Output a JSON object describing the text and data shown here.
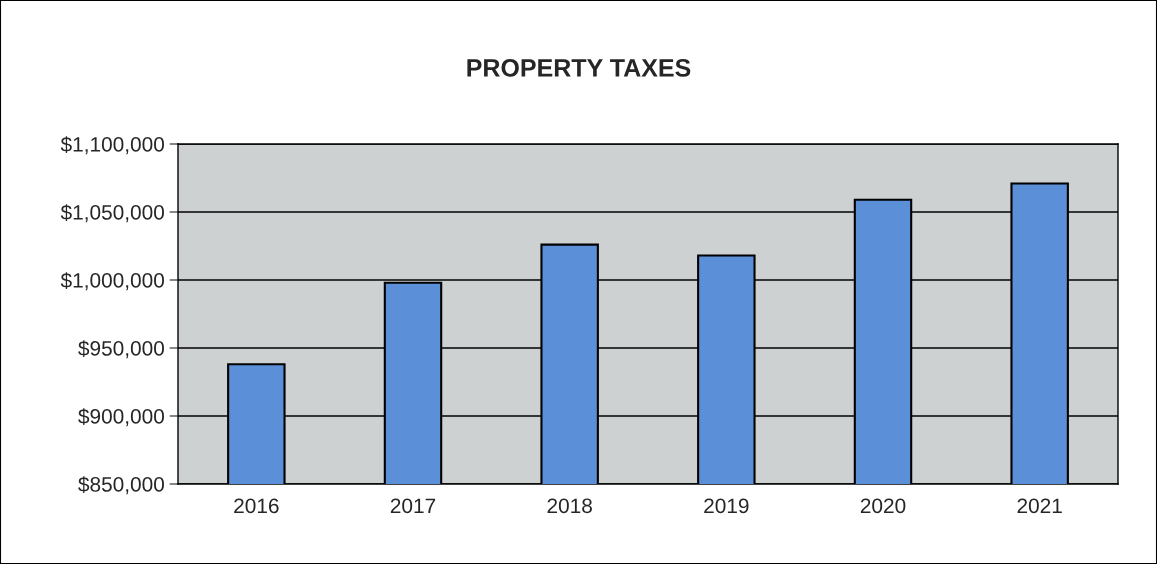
{
  "chart_data": {
    "type": "bar",
    "title": "PROPERTY TAXES",
    "categories": [
      "2016",
      "2017",
      "2018",
      "2019",
      "2020",
      "2021"
    ],
    "values": [
      938000,
      998000,
      1026000,
      1018000,
      1059000,
      1071000
    ],
    "color": "#5b8fd8",
    "ylim": [
      850000,
      1100000
    ],
    "yticks": [
      {
        "value": 850000,
        "label": "$850,000"
      },
      {
        "value": 900000,
        "label": "$900,000"
      },
      {
        "value": 950000,
        "label": "$950,000"
      },
      {
        "value": 1000000,
        "label": "$1,000,000"
      },
      {
        "value": 1050000,
        "label": "$1,050,000"
      },
      {
        "value": 1100000,
        "label": "$1,100,000"
      }
    ],
    "grid": "y",
    "legend": false
  }
}
